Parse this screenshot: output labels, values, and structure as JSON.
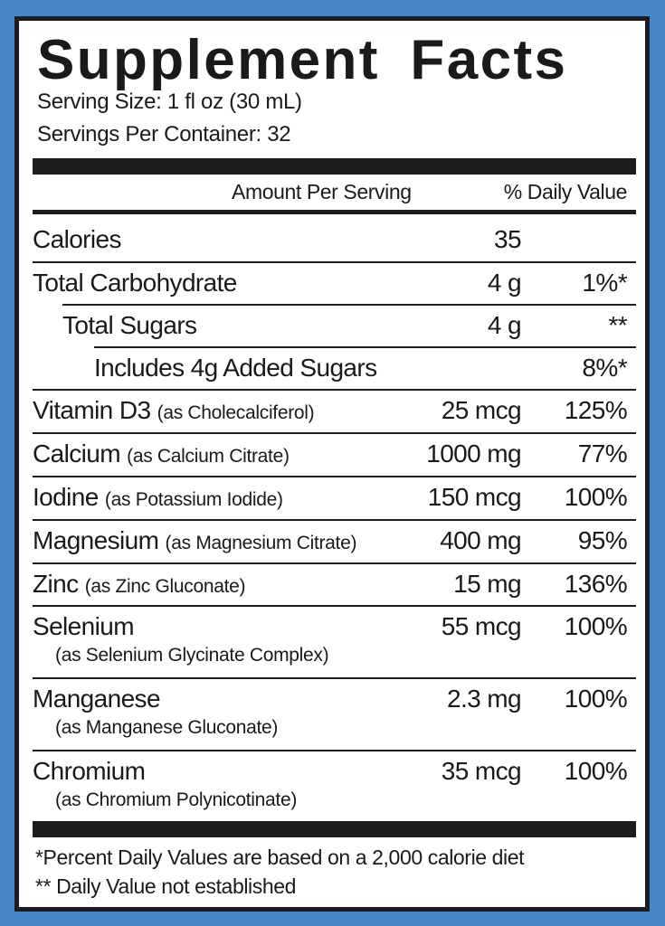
{
  "title": "Supplement Facts",
  "serving_size": "Serving Size: 1 fl oz (30 mL)",
  "servings_per_container": "Servings Per Container: 32",
  "header": {
    "amount": "Amount Per Serving",
    "dv": "% Daily Value"
  },
  "rows": [
    {
      "name": "Calories",
      "source": "",
      "amount": "35",
      "dv": ""
    },
    {
      "name": "Total Carbohydrate",
      "source": "",
      "amount": "4 g",
      "dv": "1%*"
    },
    {
      "name": "Total Sugars",
      "source": "",
      "amount": "4 g",
      "dv": "**"
    },
    {
      "name": "Includes 4g Added Sugars",
      "source": "",
      "amount": "",
      "dv": "8%*"
    },
    {
      "name": "Vitamin D3",
      "source": "(as Cholecalciferol)",
      "amount": "25 mcg",
      "dv": "125%"
    },
    {
      "name": "Calcium",
      "source": "(as Calcium Citrate)",
      "amount": "1000 mg",
      "dv": "77%"
    },
    {
      "name": "Iodine",
      "source": "(as Potassium Iodide)",
      "amount": "150 mcg",
      "dv": "100%"
    },
    {
      "name": "Magnesium",
      "source": "(as Magnesium Citrate)",
      "amount": "400 mg",
      "dv": "95%"
    },
    {
      "name": "Zinc",
      "source": "(as Zinc Gluconate)",
      "amount": "15 mg",
      "dv": "136%"
    },
    {
      "name": "Selenium",
      "source": "(as Selenium Glycinate Complex)",
      "amount": "55 mcg",
      "dv": "100%"
    },
    {
      "name": "Manganese",
      "source": "(as Manganese Gluconate)",
      "amount": "2.3 mg",
      "dv": "100%"
    },
    {
      "name": "Chromium",
      "source": "(as Chromium Polynicotinate)",
      "amount": "35 mcg",
      "dv": "100%"
    }
  ],
  "footnotes": [
    "*Percent Daily Values are based on a 2,000 calorie diet",
    "** Daily Value not established"
  ],
  "colors": {
    "background": "#4688c8",
    "ink": "#1c1c1c"
  }
}
